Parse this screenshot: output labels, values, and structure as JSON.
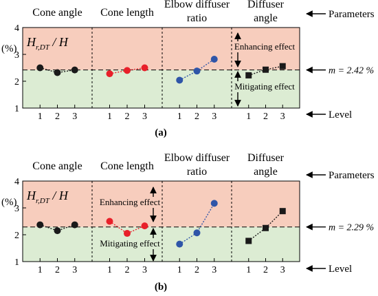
{
  "chart_data": [
    {
      "type": "line",
      "panel_label": "(a)",
      "ylabel": "(%)",
      "y_quantity": "H_r,DT / H",
      "y_quantity_main": "H",
      "y_quantity_sub": "r,DT",
      "y_quantity_tail": " / H",
      "ylim": [
        1,
        4
      ],
      "yticks": [
        "1",
        "2",
        "3",
        "4"
      ],
      "mean_label": "m = 2.42 %",
      "mean_value": 2.42,
      "groups": [
        {
          "title_lines": [
            "Cone angle"
          ],
          "x": [
            "1",
            "2",
            "3"
          ],
          "values": [
            2.5,
            2.32,
            2.42
          ],
          "color": "#1a1a1a",
          "marker": "circle"
        },
        {
          "title_lines": [
            "Cone length"
          ],
          "x": [
            "1",
            "2",
            "3"
          ],
          "values": [
            2.28,
            2.4,
            2.5
          ],
          "color": "#e8202a",
          "marker": "circle"
        },
        {
          "title_lines": [
            "Elbow diffuser",
            "ratio"
          ],
          "x": [
            "1",
            "2",
            "3"
          ],
          "values": [
            2.04,
            2.38,
            2.82
          ],
          "color": "#2f55a8",
          "marker": "circle"
        },
        {
          "title_lines": [
            "Diffuser",
            "angle"
          ],
          "x": [
            "1",
            "2",
            "3"
          ],
          "values": [
            2.22,
            2.43,
            2.56
          ],
          "color": "#1a1a1a",
          "marker": "square"
        }
      ],
      "enhancing_label": "Enhancing effect",
      "mitigating_label": "Mitigating effect",
      "effect_group_index": 2
    },
    {
      "type": "line",
      "panel_label": "(b)",
      "ylabel": "(%)",
      "y_quantity": "H_r,DT / H",
      "y_quantity_main": "H",
      "y_quantity_sub": "r,DT",
      "y_quantity_tail": " / H",
      "ylim": [
        1,
        4
      ],
      "yticks": [
        "1",
        "2",
        "3",
        "4"
      ],
      "mean_label": "m = 2.29 %",
      "mean_value": 2.29,
      "groups": [
        {
          "title_lines": [
            "Cone angle"
          ],
          "x": [
            "1",
            "2",
            "3"
          ],
          "values": [
            2.37,
            2.15,
            2.37
          ],
          "color": "#1a1a1a",
          "marker": "circle"
        },
        {
          "title_lines": [
            "Cone length"
          ],
          "x": [
            "1",
            "2",
            "3"
          ],
          "values": [
            2.5,
            2.05,
            2.33
          ],
          "color": "#e8202a",
          "marker": "circle"
        },
        {
          "title_lines": [
            "Elbow diffuser",
            "ratio"
          ],
          "x": [
            "1",
            "2",
            "3"
          ],
          "values": [
            1.65,
            2.07,
            3.17
          ],
          "color": "#2f55a8",
          "marker": "circle"
        },
        {
          "title_lines": [
            "Diffuser",
            "angle"
          ],
          "x": [
            "1",
            "2",
            "3"
          ],
          "values": [
            1.77,
            2.25,
            2.88
          ],
          "color": "#1a1a1a",
          "marker": "square"
        }
      ],
      "enhancing_label": "Enhancing effect",
      "mitigating_label": "Mitigating effect",
      "effect_group_index": 1
    }
  ],
  "annotations": {
    "parameters_label": "Parameters",
    "level_label": "Level"
  },
  "colors": {
    "above_mean_fill": "#f7cdbd",
    "below_mean_fill": "#dcecd3"
  }
}
